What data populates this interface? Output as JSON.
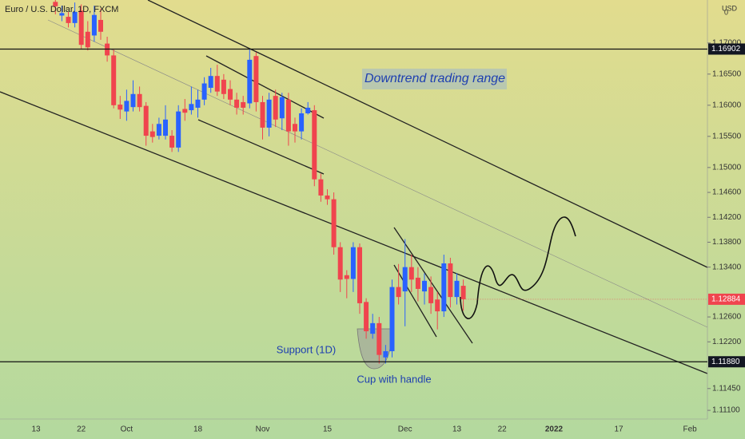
{
  "chart_data": {
    "type": "candlestick",
    "title": "Euro / U.S. Dollar, 1D, FXCM",
    "currency": "USD",
    "currency_note": "0",
    "annotations": [
      "Downtrend trading range",
      "Support (1D)",
      "Cup with handle"
    ],
    "up_color": "#2962ff",
    "down_color": "#f0444e",
    "ylim": [
      1.1096,
      1.1769
    ],
    "yticks": [
      {
        "value": 1.17,
        "label": "1.17000"
      },
      {
        "value": 1.165,
        "label": "1.16500"
      },
      {
        "value": 1.16,
        "label": "1.16000"
      },
      {
        "value": 1.155,
        "label": "1.15500"
      },
      {
        "value": 1.15,
        "label": "1.15000"
      },
      {
        "value": 1.146,
        "label": "1.14600"
      },
      {
        "value": 1.142,
        "label": "1.14200"
      },
      {
        "value": 1.138,
        "label": "1.13800"
      },
      {
        "value": 1.134,
        "label": "1.13400"
      },
      {
        "value": 1.126,
        "label": "1.12600"
      },
      {
        "value": 1.122,
        "label": "1.12200"
      },
      {
        "value": 1.1145,
        "label": "1.11450"
      },
      {
        "value": 1.111,
        "label": "1.11100"
      }
    ],
    "levels": [
      {
        "value": 1.16902,
        "label": "1.16902"
      },
      {
        "value": 1.1188,
        "label": "1.11880"
      }
    ],
    "last_price": {
      "value": 1.12884,
      "label": "1.12884"
    },
    "categories": [
      "13",
      null,
      null,
      null,
      null,
      null,
      null,
      "22",
      null,
      null,
      null,
      null,
      null,
      null,
      "Oct",
      null,
      null,
      null,
      null,
      null,
      null,
      null,
      null,
      null,
      null,
      "18",
      null,
      null,
      null,
      null,
      null,
      null,
      null,
      null,
      null,
      "Nov",
      null,
      null,
      null,
      null,
      null,
      null,
      null,
      null,
      null,
      "15",
      null,
      null,
      null,
      null,
      null,
      null,
      null,
      null,
      null,
      null,
      null,
      "Dec",
      null,
      null,
      null,
      null,
      null,
      null,
      null,
      "13",
      null,
      null,
      null,
      null,
      null,
      null,
      "22",
      null,
      null,
      null,
      null,
      null,
      null,
      null,
      "2022",
      null,
      null,
      null,
      null,
      null,
      null,
      null,
      null,
      null,
      "17",
      null,
      null,
      null,
      null,
      null,
      null,
      null,
      null,
      null,
      null,
      "Feb",
      null
    ],
    "open": [
      null,
      null,
      null,
      1.1766,
      1.1744,
      1.1742,
      1.1732,
      1.1752,
      1.1718,
      1.1712,
      1.1737,
      1.1699,
      1.168,
      1.1601,
      1.159,
      1.1597,
      1.1618,
      1.1599,
      1.1558,
      1.1551,
      1.1551,
      1.1551,
      1.1532,
      1.1594,
      1.1592,
      1.1596,
      1.1609,
      1.1628,
      1.1647,
      1.1641,
      1.1626,
      1.1609,
      1.1605,
      1.1603,
      1.1679,
      1.1605,
      1.1564,
      1.1615,
      1.1579,
      1.1609,
      1.157,
      1.1558,
      1.1587,
      1.1592,
      1.1481,
      1.1455,
      1.1449,
      1.1372,
      1.1327,
      1.1321,
      1.1372,
      1.1284,
      1.1233,
      1.125,
      1.1195,
      1.1205,
      1.1308,
      1.1301,
      1.134,
      1.1323,
      1.1301,
      1.1308,
      1.1288,
      1.1269,
      1.1346,
      1.1292,
      1.131,
      null,
      null,
      null,
      null,
      null,
      null,
      null,
      null,
      null,
      null,
      null,
      null,
      null,
      null,
      null,
      null,
      null,
      null,
      null,
      null,
      null,
      null,
      null,
      null,
      null,
      null,
      null,
      null,
      null,
      null,
      null,
      null,
      null,
      null,
      null,
      null
    ],
    "high": [
      null,
      null,
      null,
      1.1769,
      1.176,
      1.175,
      1.1765,
      1.1762,
      1.1735,
      1.176,
      1.1755,
      1.171,
      1.169,
      1.1615,
      1.1625,
      1.164,
      1.163,
      1.1605,
      1.157,
      1.158,
      1.16,
      1.156,
      1.16,
      1.161,
      1.163,
      1.1625,
      1.1645,
      1.166,
      1.1665,
      1.165,
      1.164,
      1.162,
      1.1615,
      1.169,
      1.1685,
      1.1615,
      1.162,
      1.1625,
      1.162,
      1.162,
      1.158,
      1.1595,
      1.1605,
      1.16,
      1.149,
      1.1465,
      1.146,
      1.138,
      1.1335,
      1.138,
      1.1378,
      1.129,
      1.1265,
      1.126,
      1.1215,
      1.132,
      1.1345,
      1.1385,
      1.136,
      1.134,
      1.133,
      1.1325,
      1.13,
      1.136,
      1.1355,
      1.133,
      1.132,
      null,
      null,
      null,
      null,
      null,
      null,
      null,
      null,
      null,
      null,
      null,
      null,
      null,
      null,
      null,
      null,
      null,
      null,
      null,
      null,
      null,
      null,
      null,
      null,
      null,
      null,
      null,
      null,
      null,
      null,
      null,
      null,
      null,
      null,
      null,
      null
    ],
    "low": [
      null,
      null,
      null,
      1.1746,
      1.1735,
      1.1725,
      1.1725,
      1.169,
      1.1688,
      1.1702,
      1.1705,
      1.167,
      1.1595,
      1.1578,
      1.1575,
      1.159,
      1.159,
      1.1535,
      1.154,
      1.1545,
      1.1545,
      1.1525,
      1.1525,
      1.1575,
      1.1585,
      1.158,
      1.16,
      1.162,
      1.1615,
      1.161,
      1.16,
      1.1585,
      1.1585,
      1.1595,
      1.159,
      1.1545,
      1.155,
      1.1565,
      1.156,
      1.1535,
      1.154,
      1.1545,
      1.1585,
      1.147,
      1.1445,
      1.144,
      1.136,
      1.13,
      1.129,
      1.13,
      1.1265,
      1.1225,
      1.1225,
      1.1185,
      1.1185,
      1.1195,
      1.128,
      1.1245,
      1.13,
      1.1285,
      1.128,
      1.1265,
      1.124,
      1.126,
      1.1275,
      1.128,
      1.127,
      null,
      null,
      null,
      null,
      null,
      null,
      null,
      null,
      null,
      null,
      null,
      null,
      null,
      null,
      null,
      null,
      null,
      null,
      null,
      null,
      null,
      null,
      null,
      null,
      null,
      null,
      null,
      null,
      null,
      null,
      null,
      null,
      null,
      null,
      null,
      null
    ],
    "close": [
      null,
      null,
      null,
      1.1759,
      1.1748,
      1.1732,
      1.175,
      1.1697,
      1.1693,
      1.1745,
      1.1718,
      1.168,
      1.16,
      1.1593,
      1.1607,
      1.1618,
      1.1597,
      1.1551,
      1.1549,
      1.157,
      1.1577,
      1.1532,
      1.159,
      1.1588,
      1.1602,
      1.1609,
      1.1635,
      1.1647,
      1.1622,
      1.1618,
      1.1609,
      1.1596,
      1.1596,
      1.1673,
      1.1605,
      1.1564,
      1.1609,
      1.1577,
      1.1613,
      1.1558,
      1.1558,
      1.1587,
      1.1596,
      1.1481,
      1.1455,
      1.1449,
      1.1372,
      1.132,
      1.1321,
      1.1372,
      1.1282,
      1.1237,
      1.125,
      1.1199,
      1.1205,
      1.1308,
      1.1292,
      1.134,
      1.132,
      1.1305,
      1.1318,
      1.1282,
      1.1269,
      1.1346,
      1.1292,
      1.1318,
      1.12884,
      null,
      null,
      null,
      null,
      null,
      null,
      null,
      null,
      null,
      null,
      null,
      null,
      null,
      null,
      null,
      null,
      null,
      null,
      null,
      null,
      null,
      null,
      null,
      null,
      null,
      null,
      null,
      null,
      null,
      null,
      null,
      null,
      null,
      null,
      null,
      null
    ]
  }
}
